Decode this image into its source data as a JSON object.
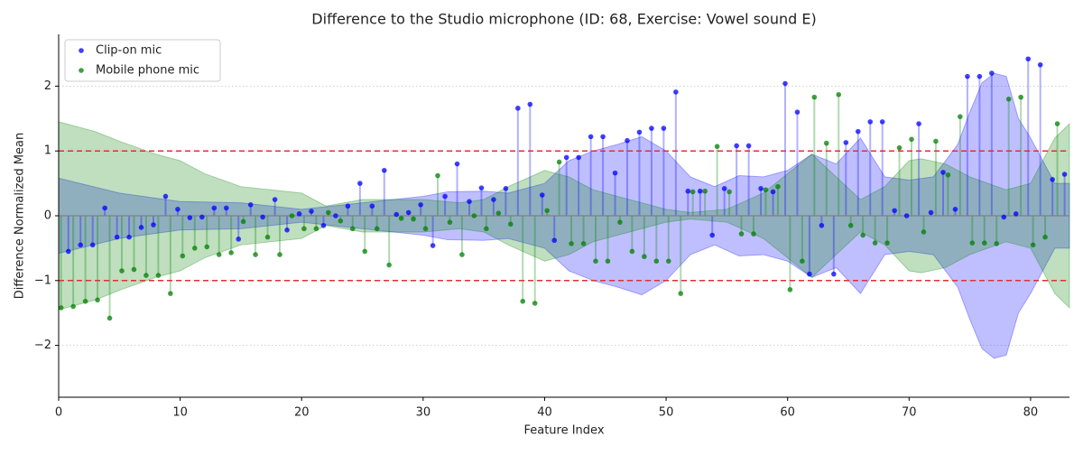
{
  "chart_data": {
    "type": "stem",
    "title": "Difference to the Studio microphone (ID: 68, Exercise: Vowel sound E)",
    "x_label": "Feature Index",
    "y_label": "Difference Normalized Mean",
    "xlim": [
      0,
      83.2
    ],
    "ylim": [
      -2.8,
      2.8
    ],
    "xticks": [
      0,
      10,
      20,
      30,
      40,
      50,
      60,
      70,
      80
    ],
    "yticks": [
      {
        "value": -2,
        "label": "−2"
      },
      {
        "value": -1,
        "label": "−1"
      },
      0,
      1,
      2
    ],
    "grid": true,
    "legend": "upper left",
    "hlines": {
      "values": [
        1,
        -1
      ],
      "color": "#e03030"
    },
    "series": [
      {
        "name": "Clip-on mic",
        "color": "#0000ff",
        "x": [
          0.8,
          1.8,
          2.8,
          3.8,
          4.8,
          5.8,
          6.8,
          7.8,
          8.8,
          9.8,
          10.8,
          11.8,
          12.8,
          13.8,
          14.8,
          15.8,
          16.8,
          17.8,
          18.8,
          19.8,
          20.8,
          21.8,
          22.8,
          23.8,
          24.8,
          25.8,
          26.8,
          27.8,
          28.8,
          29.8,
          30.8,
          31.8,
          32.8,
          33.8,
          34.8,
          35.8,
          36.8,
          37.8,
          38.8,
          39.8,
          40.8,
          41.8,
          42.8,
          43.8,
          44.8,
          45.8,
          46.8,
          47.8,
          48.8,
          49.8,
          50.8,
          51.8,
          52.8,
          53.8,
          54.8,
          55.8,
          56.8,
          57.8,
          58.8,
          59.8,
          60.8,
          61.8,
          62.8,
          63.8,
          64.8,
          65.8,
          66.8,
          67.8,
          68.8,
          69.8,
          70.8,
          71.8,
          72.8,
          73.8,
          74.8,
          75.8,
          76.8,
          77.8,
          78.8,
          79.8,
          80.8,
          81.8,
          82.8
        ],
        "values": [
          -0.55,
          -0.45,
          -0.45,
          0.12,
          -0.33,
          -0.33,
          -0.18,
          -0.14,
          0.3,
          0.1,
          -0.03,
          -0.02,
          0.12,
          0.12,
          -0.36,
          0.17,
          -0.02,
          0.25,
          -0.22,
          0.03,
          0.07,
          -0.15,
          0.0,
          0.15,
          0.5,
          0.15,
          0.7,
          0.02,
          0.05,
          0.17,
          -0.46,
          0.3,
          0.8,
          0.22,
          0.43,
          0.25,
          0.42,
          1.66,
          1.72,
          0.32,
          -0.38,
          0.9,
          0.9,
          1.22,
          1.22,
          0.66,
          1.16,
          1.29,
          1.35,
          1.35,
          1.91,
          0.38,
          0.38,
          -0.3,
          0.42,
          1.08,
          1.08,
          0.42,
          0.37,
          2.04,
          1.6,
          -0.9,
          -0.15,
          -0.9,
          1.13,
          1.3,
          1.45,
          1.45,
          0.08,
          0.0,
          1.42,
          0.05,
          0.67,
          0.1,
          2.15,
          2.15,
          2.2,
          -0.02,
          0.03,
          2.42,
          2.33,
          0.56,
          0.64
        ],
        "band_x": [
          0,
          5,
          10,
          15,
          20,
          25,
          30,
          32,
          35,
          37,
          40,
          42,
          44,
          46,
          48,
          50,
          52,
          54,
          56,
          58,
          60,
          62,
          64,
          66,
          68,
          70,
          72,
          74,
          75,
          76,
          77,
          78,
          79,
          80,
          82,
          83.2
        ],
        "band": [
          0.58,
          0.35,
          0.22,
          0.2,
          0.1,
          0.2,
          0.3,
          0.37,
          0.38,
          0.35,
          0.5,
          0.85,
          1.0,
          1.1,
          1.22,
          1.0,
          0.6,
          0.45,
          0.62,
          0.6,
          0.7,
          0.95,
          0.8,
          1.2,
          0.6,
          0.55,
          0.6,
          1.1,
          1.6,
          2.05,
          2.2,
          2.15,
          1.5,
          1.2,
          0.5,
          0.5
        ]
      },
      {
        "name": "Mobile phone mic",
        "color": "#008000",
        "x": [
          0.2,
          1.2,
          2.2,
          3.2,
          4.2,
          5.2,
          6.2,
          7.2,
          8.2,
          9.2,
          10.2,
          11.2,
          12.2,
          13.2,
          14.2,
          15.2,
          16.2,
          17.2,
          18.2,
          19.2,
          20.2,
          21.2,
          22.2,
          23.2,
          24.2,
          25.2,
          26.2,
          27.2,
          28.2,
          29.2,
          30.2,
          31.2,
          32.2,
          33.2,
          34.2,
          35.2,
          36.2,
          37.2,
          38.2,
          39.2,
          40.2,
          41.2,
          42.2,
          43.2,
          44.2,
          45.2,
          46.2,
          47.2,
          48.2,
          49.2,
          50.2,
          51.2,
          52.2,
          53.2,
          54.2,
          55.2,
          56.2,
          57.2,
          58.2,
          59.2,
          60.2,
          61.2,
          62.2,
          63.2,
          64.2,
          65.2,
          66.2,
          67.2,
          68.2,
          69.2,
          70.2,
          71.2,
          72.2,
          73.2,
          74.2,
          75.2,
          76.2,
          77.2,
          78.2,
          79.2,
          80.2,
          81.2,
          82.2
        ],
        "values": [
          -1.42,
          -1.4,
          -1.32,
          -1.3,
          -1.58,
          -0.85,
          -0.83,
          -0.92,
          -0.92,
          -1.2,
          -0.62,
          -0.5,
          -0.48,
          -0.6,
          -0.57,
          -0.09,
          -0.6,
          -0.33,
          -0.6,
          0.0,
          -0.2,
          -0.2,
          0.05,
          -0.08,
          -0.2,
          -0.55,
          -0.2,
          -0.76,
          -0.04,
          -0.05,
          -0.2,
          0.62,
          -0.1,
          -0.6,
          0.0,
          -0.2,
          0.04,
          -0.13,
          -1.32,
          -1.35,
          0.08,
          0.83,
          -0.43,
          -0.43,
          -0.7,
          -0.7,
          -0.1,
          -0.55,
          -0.63,
          -0.7,
          -0.7,
          -1.2,
          0.37,
          0.38,
          1.07,
          0.37,
          -0.28,
          -0.28,
          0.4,
          0.45,
          -1.14,
          -0.7,
          1.83,
          1.12,
          1.87,
          -0.15,
          -0.3,
          -0.42,
          -0.42,
          1.05,
          1.18,
          -0.25,
          1.15,
          0.63,
          1.53,
          -0.42,
          -0.42,
          -0.43,
          1.8,
          1.83,
          -0.45,
          -0.33,
          1.42
        ],
        "band_x": [
          0,
          3,
          5,
          8,
          10,
          12,
          15,
          20,
          22,
          25,
          30,
          33,
          35,
          37,
          40,
          42,
          44,
          46,
          50,
          52,
          55,
          58,
          60,
          62,
          64,
          66,
          68,
          70,
          71,
          73,
          75,
          78,
          80,
          82,
          83.2
        ],
        "band": [
          1.45,
          1.3,
          1.15,
          0.95,
          0.85,
          0.65,
          0.45,
          0.35,
          0.15,
          0.25,
          0.25,
          0.2,
          0.25,
          0.45,
          0.7,
          0.6,
          0.4,
          0.3,
          0.1,
          0.05,
          0.1,
          0.35,
          0.65,
          0.95,
          0.6,
          0.25,
          0.45,
          0.85,
          0.88,
          0.8,
          0.6,
          0.4,
          0.5,
          1.2,
          1.42
        ]
      }
    ]
  }
}
